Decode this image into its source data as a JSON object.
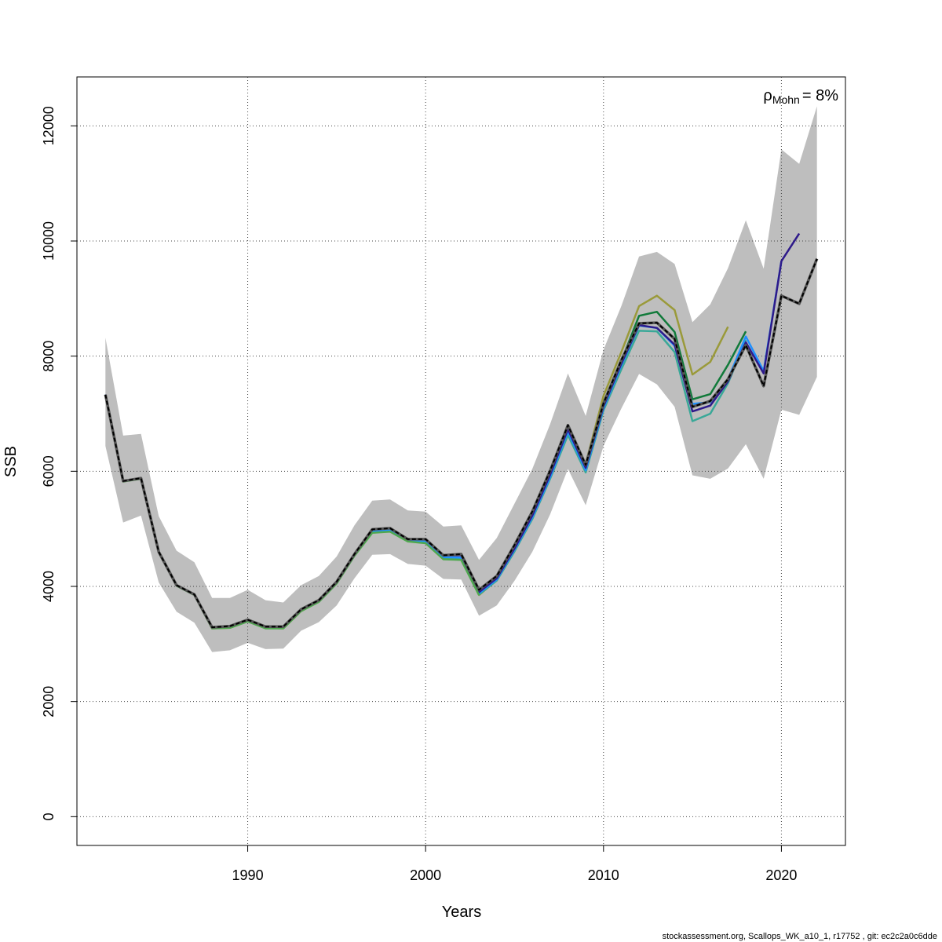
{
  "chart_data": {
    "type": "line",
    "title": "",
    "xlabel": "Years",
    "ylabel": "SSB",
    "xlim": [
      1980.4,
      2023.6
    ],
    "ylim": [
      -500,
      12850
    ],
    "x_ticks": [
      1990,
      2000,
      2010,
      2020
    ],
    "x_tick_labels": [
      "1990",
      "2000",
      "2010",
      "2020"
    ],
    "y_ticks": [
      0,
      2000,
      4000,
      6000,
      8000,
      10000,
      12000
    ],
    "y_tick_labels": [
      "0",
      "2000",
      "4000",
      "6000",
      "8000",
      "10000",
      "12000"
    ],
    "grid": true,
    "annotation": {
      "rho_symbol": "ρ",
      "rho_subscript": "Mohn",
      "rho_value": "= 8%"
    },
    "footer": "stockassessment.org, Scallops_WK_a10_1, r17752 , git: ec2c2a0c6dde",
    "colors": {
      "band": "#bebebe",
      "base": "#000000",
      "peel1": "#2e1a8a",
      "peel2": "#1e90ff",
      "peel3": "#3aa898",
      "peel4": "#117a3a",
      "peel5": "#9a9a3a",
      "early": "#4fa84f"
    },
    "band": {
      "x": [
        1982,
        1983,
        1984,
        1985,
        1986,
        1987,
        1988,
        1989,
        1990,
        1991,
        1992,
        1993,
        1994,
        1995,
        1996,
        1997,
        1998,
        1999,
        2000,
        2001,
        2002,
        2003,
        2004,
        2005,
        2006,
        2007,
        2008,
        2009,
        2010,
        2011,
        2012,
        2013,
        2014,
        2015,
        2016,
        2017,
        2018,
        2019,
        2020,
        2021,
        2022
      ],
      "upper": [
        8320,
        6620,
        6650,
        5220,
        4620,
        4420,
        3800,
        3800,
        3940,
        3760,
        3720,
        4020,
        4180,
        4520,
        5060,
        5490,
        5510,
        5320,
        5300,
        5040,
        5060,
        4460,
        4840,
        5440,
        6040,
        6820,
        7700,
        6960,
        8110,
        8870,
        9730,
        9810,
        9600,
        8590,
        8900,
        9530,
        10360,
        9520,
        11590,
        11340,
        12340
      ],
      "lower": [
        6440,
        5110,
        5230,
        4070,
        3560,
        3370,
        2860,
        2890,
        3020,
        2910,
        2920,
        3230,
        3380,
        3670,
        4140,
        4550,
        4560,
        4390,
        4360,
        4130,
        4120,
        3490,
        3670,
        4100,
        4600,
        5250,
        6040,
        5410,
        6440,
        7090,
        7690,
        7510,
        7120,
        5930,
        5870,
        6050,
        6470,
        5870,
        7070,
        6980,
        7640
      ]
    },
    "series": [
      {
        "key": "base",
        "dashed": true,
        "x_start": 1982,
        "values": [
          7330,
          5830,
          5880,
          4600,
          4020,
          3860,
          3290,
          3310,
          3420,
          3300,
          3300,
          3600,
          3760,
          4080,
          4560,
          4990,
          5010,
          4820,
          4820,
          4540,
          4560,
          3940,
          4180,
          4720,
          5300,
          6010,
          6800,
          6110,
          7180,
          7930,
          8570,
          8580,
          8300,
          7120,
          7220,
          7600,
          8190,
          7480,
          9050,
          8910,
          9690
        ]
      },
      {
        "key": "peel1",
        "dashed": false,
        "x_start": 1982,
        "values": [
          7330,
          5830,
          5880,
          4600,
          4020,
          3860,
          3290,
          3310,
          3420,
          3300,
          3300,
          3600,
          3760,
          4080,
          4560,
          4990,
          5010,
          4820,
          4820,
          4540,
          4540,
          3900,
          4140,
          4660,
          5230,
          5940,
          6730,
          6060,
          7130,
          7870,
          8540,
          8490,
          8200,
          7040,
          7140,
          7560,
          8240,
          7700,
          9650,
          10130
        ]
      },
      {
        "key": "peel2",
        "dashed": false,
        "x_start": 1982,
        "values": [
          7330,
          5830,
          5880,
          4600,
          4020,
          3860,
          3290,
          3310,
          3420,
          3300,
          3300,
          3600,
          3760,
          4080,
          4560,
          4960,
          4980,
          4800,
          4790,
          4510,
          4500,
          3880,
          4120,
          4640,
          5200,
          5900,
          6690,
          6020,
          7100,
          7840,
          8530,
          8490,
          8180,
          7170,
          7200,
          7600,
          8340,
          7740,
          9650
        ]
      },
      {
        "key": "peel3",
        "dashed": false,
        "x_start": 1982,
        "values": [
          7330,
          5830,
          5880,
          4600,
          4020,
          3860,
          3280,
          3290,
          3400,
          3280,
          3280,
          3580,
          3740,
          4060,
          4540,
          4940,
          4960,
          4790,
          4760,
          4480,
          4470,
          3860,
          4100,
          4610,
          5170,
          5870,
          6630,
          5980,
          7060,
          7770,
          8440,
          8430,
          8070,
          6870,
          7000,
          7530,
          8280
        ]
      },
      {
        "key": "peel4",
        "dashed": false,
        "x_start": 1982,
        "values": [
          7330,
          5830,
          5880,
          4600,
          4020,
          3860,
          3280,
          3290,
          3400,
          3280,
          3280,
          3580,
          3740,
          4060,
          4540,
          4940,
          4960,
          4790,
          4760,
          4480,
          4470,
          3860,
          4110,
          4640,
          5180,
          5890,
          6670,
          6040,
          7180,
          7910,
          8700,
          8770,
          8420,
          7250,
          7340,
          7850,
          8430
        ]
      },
      {
        "key": "peel5",
        "dashed": false,
        "x_start": 1982,
        "values": [
          7330,
          5830,
          5880,
          4600,
          4020,
          3860,
          3270,
          3280,
          3400,
          3280,
          3270,
          3570,
          3740,
          4060,
          4550,
          4950,
          4970,
          4800,
          4770,
          4480,
          4470,
          3850,
          4110,
          4660,
          5220,
          5950,
          6760,
          6130,
          7310,
          8070,
          8870,
          9050,
          8800,
          7680,
          7900,
          8510
        ]
      }
    ],
    "early_overlay": {
      "key": "early",
      "x": [
        1982,
        1983,
        1984,
        1985,
        1986,
        1987,
        1988,
        1989,
        1990,
        1991,
        1992,
        1993,
        1994,
        1995,
        1996,
        1997,
        1998,
        1999,
        2000,
        2001,
        2002,
        2003
      ],
      "values": [
        7320,
        5820,
        5870,
        4590,
        4010,
        3850,
        3270,
        3280,
        3390,
        3270,
        3270,
        3570,
        3730,
        4050,
        4530,
        4930,
        4950,
        4780,
        4750,
        4470,
        4460,
        3850
      ]
    }
  }
}
